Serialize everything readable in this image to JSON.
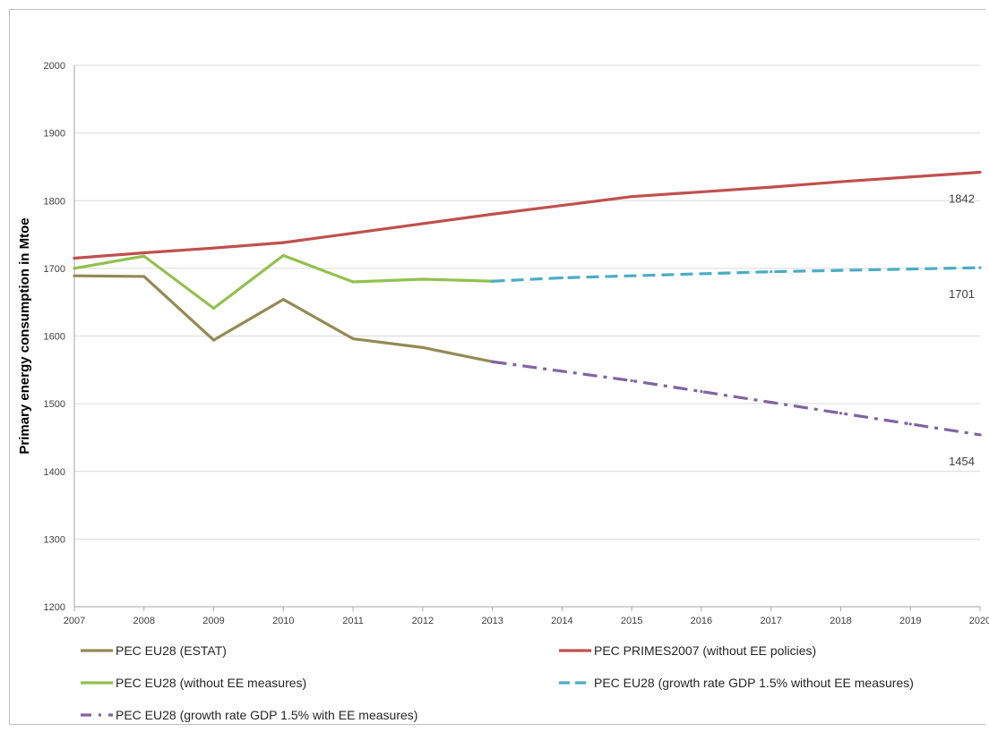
{
  "chart_data": {
    "type": "line",
    "xlabel": "",
    "ylabel": "Primary energy consumption in Mtoe",
    "ylim": [
      1200,
      2000
    ],
    "y_ticks": [
      "1200",
      "1300",
      "1400",
      "1500",
      "1600",
      "1700",
      "1800",
      "1900",
      "2000"
    ],
    "categories": [
      "2007",
      "2008",
      "2009",
      "2010",
      "2011",
      "2012",
      "2013",
      "2014",
      "2015",
      "2016",
      "2017",
      "2018",
      "2019",
      "2020"
    ],
    "grid": true,
    "legend_position": "bottom",
    "series": [
      {
        "name": "PEC EU28 (ESTAT)",
        "color": "#948A54",
        "style": "solid",
        "points": [
          [
            0,
            1689
          ],
          [
            1,
            1688
          ],
          [
            2,
            1594
          ],
          [
            3,
            1654
          ],
          [
            4,
            1596
          ],
          [
            5,
            1583
          ],
          [
            6,
            1562
          ]
        ]
      },
      {
        "name": "PEC PRIMES2007 (without EE policies)",
        "color": "#C0504D",
        "style": "solid",
        "points": [
          [
            0,
            1715
          ],
          [
            1,
            1723
          ],
          [
            2,
            1730
          ],
          [
            3,
            1738
          ],
          [
            4,
            1752
          ],
          [
            5,
            1766
          ],
          [
            6,
            1780
          ],
          [
            7,
            1793
          ],
          [
            8,
            1806
          ],
          [
            9,
            1813
          ],
          [
            10,
            1820
          ],
          [
            11,
            1828
          ],
          [
            12,
            1835
          ],
          [
            13,
            1842
          ]
        ]
      },
      {
        "name": "PEC EU28 (without EE measures)",
        "color": "#92C14F",
        "style": "solid",
        "points": [
          [
            0,
            1700
          ],
          [
            1,
            1718
          ],
          [
            2,
            1641
          ],
          [
            3,
            1719
          ],
          [
            4,
            1680
          ],
          [
            5,
            1684
          ],
          [
            6,
            1681
          ]
        ]
      },
      {
        "name": "PEC EU28 (growth rate GDP 1.5% without EE measures)",
        "color": "#4BACC6",
        "style": "dash",
        "points": [
          [
            6,
            1681
          ],
          [
            7,
            1686
          ],
          [
            8,
            1689
          ],
          [
            9,
            1692
          ],
          [
            10,
            1695
          ],
          [
            11,
            1697
          ],
          [
            12,
            1699
          ],
          [
            13,
            1701
          ]
        ]
      },
      {
        "name": "PEC EU28 (growth rate GDP 1.5% with EE measures)",
        "color": "#8064A2",
        "style": "dashdot",
        "points": [
          [
            6,
            1562
          ],
          [
            7,
            1548
          ],
          [
            8,
            1534
          ],
          [
            9,
            1518
          ],
          [
            10,
            1502
          ],
          [
            11,
            1486
          ],
          [
            12,
            1470
          ],
          [
            13,
            1454
          ]
        ]
      }
    ],
    "end_labels": [
      {
        "text": "1842",
        "value": 1842
      },
      {
        "text": "1701",
        "value": 1701
      },
      {
        "text": "1454",
        "value": 1454
      }
    ]
  }
}
